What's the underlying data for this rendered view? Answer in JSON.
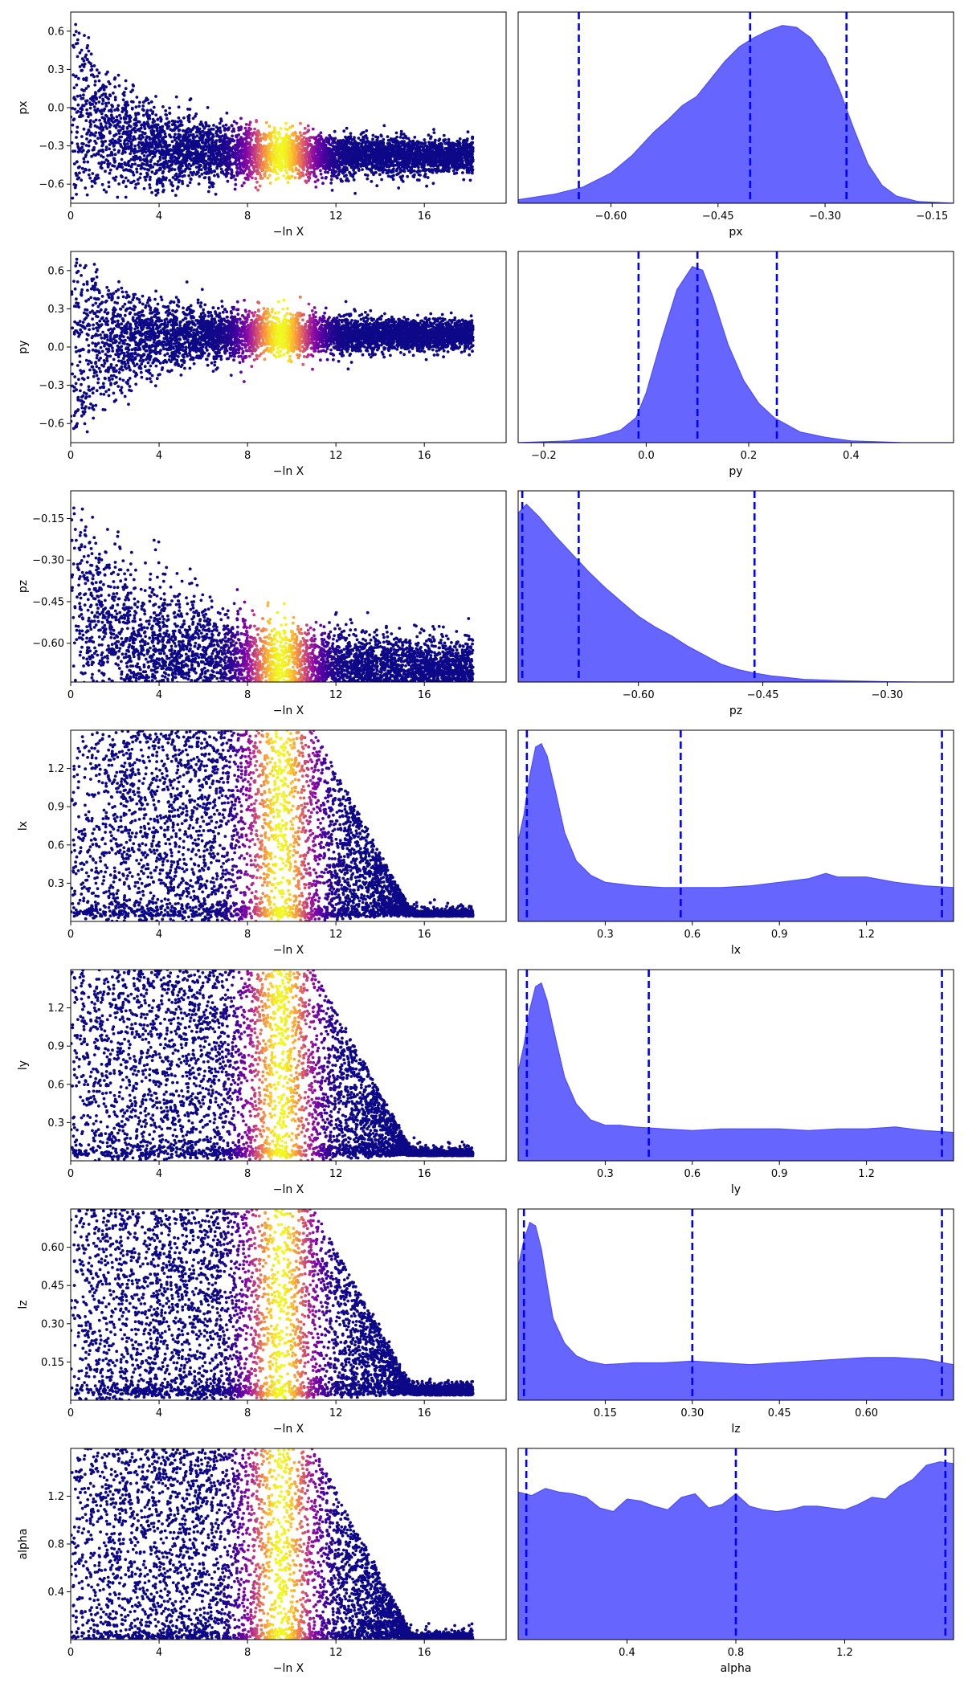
{
  "chart_data": [
    {
      "type": "scatter",
      "param": "px",
      "xlabel": "−ln X",
      "ylabel": "px",
      "xlim": [
        0,
        19.7
      ],
      "ylim": [
        -0.75,
        0.75
      ],
      "xticks": [
        0,
        4,
        8,
        12,
        16
      ],
      "yticks": [
        0.6,
        0.3,
        0.0,
        -0.3,
        -0.6
      ],
      "ytick_labels": [
        "0.6",
        "0.3",
        "0.0",
        "−0.3",
        "−0.6"
      ],
      "colormap": "plasma",
      "color_peak_lnx": 9.5,
      "posterior_center": -0.38,
      "final_spread": 0.06
    },
    {
      "type": "area",
      "param": "px",
      "xlabel": "px",
      "xlim": [
        -0.73,
        -0.12
      ],
      "xticks": [
        -0.6,
        -0.45,
        -0.3,
        -0.15
      ],
      "xtick_labels": [
        "−0.60",
        "−0.45",
        "−0.30",
        "−0.15"
      ],
      "quantiles": [
        -0.645,
        -0.405,
        -0.27
      ],
      "x": [
        -0.73,
        -0.68,
        -0.64,
        -0.6,
        -0.57,
        -0.54,
        -0.52,
        -0.5,
        -0.48,
        -0.46,
        -0.44,
        -0.42,
        -0.4,
        -0.38,
        -0.36,
        -0.34,
        -0.32,
        -0.3,
        -0.28,
        -0.26,
        -0.24,
        -0.22,
        -0.2,
        -0.17,
        -0.12
      ],
      "density": [
        0.02,
        0.05,
        0.09,
        0.17,
        0.27,
        0.4,
        0.47,
        0.55,
        0.6,
        0.7,
        0.8,
        0.88,
        0.93,
        0.97,
        1.0,
        0.99,
        0.93,
        0.82,
        0.64,
        0.42,
        0.22,
        0.1,
        0.04,
        0.01,
        0.0
      ]
    },
    {
      "type": "scatter",
      "param": "py",
      "xlabel": "−ln X",
      "ylabel": "py",
      "xlim": [
        0,
        19.7
      ],
      "ylim": [
        -0.75,
        0.75
      ],
      "xticks": [
        0,
        4,
        8,
        12,
        16
      ],
      "yticks": [
        0.6,
        0.3,
        0.0,
        -0.3,
        -0.6
      ],
      "ytick_labels": [
        "0.6",
        "0.3",
        "0.0",
        "−0.3",
        "−0.6"
      ],
      "colormap": "plasma",
      "color_peak_lnx": 9.5,
      "posterior_center": 0.1,
      "final_spread": 0.05
    },
    {
      "type": "area",
      "param": "py",
      "xlabel": "py",
      "xlim": [
        -0.25,
        0.6
      ],
      "xticks": [
        -0.2,
        0.0,
        0.2,
        0.4
      ],
      "xtick_labels": [
        "−0.2",
        "0.0",
        "0.2",
        "0.4"
      ],
      "quantiles": [
        -0.015,
        0.1,
        0.255
      ],
      "x": [
        -0.25,
        -0.15,
        -0.1,
        -0.05,
        -0.02,
        0.0,
        0.03,
        0.06,
        0.09,
        0.11,
        0.13,
        0.16,
        0.19,
        0.22,
        0.25,
        0.3,
        0.35,
        0.4,
        0.5,
        0.6
      ],
      "density": [
        0.0,
        0.01,
        0.03,
        0.07,
        0.14,
        0.28,
        0.58,
        0.86,
        0.99,
        0.97,
        0.82,
        0.55,
        0.35,
        0.22,
        0.14,
        0.06,
        0.03,
        0.01,
        0.0,
        0.0
      ]
    },
    {
      "type": "scatter",
      "param": "pz",
      "xlabel": "−ln X",
      "ylabel": "pz",
      "xlim": [
        0,
        19.7
      ],
      "ylim": [
        -0.74,
        -0.05
      ],
      "xticks": [
        0,
        4,
        8,
        12,
        16
      ],
      "yticks": [
        -0.15,
        -0.3,
        -0.45,
        -0.6
      ],
      "ytick_labels": [
        "−0.15",
        "−0.30",
        "−0.45",
        "−0.60"
      ],
      "colormap": "plasma",
      "color_peak_lnx": 9.5,
      "posterior_center": -0.7,
      "final_spread": 0.05
    },
    {
      "type": "area",
      "param": "pz",
      "xlabel": "pz",
      "xlim": [
        -0.745,
        -0.22
      ],
      "xticks": [
        -0.6,
        -0.45,
        -0.3
      ],
      "xtick_labels": [
        "−0.60",
        "−0.45",
        "−0.30"
      ],
      "quantiles": [
        -0.74,
        -0.672,
        -0.46
      ],
      "x": [
        -0.745,
        -0.735,
        -0.72,
        -0.7,
        -0.68,
        -0.66,
        -0.64,
        -0.62,
        -0.6,
        -0.58,
        -0.56,
        -0.54,
        -0.52,
        -0.5,
        -0.48,
        -0.46,
        -0.44,
        -0.42,
        -0.4,
        -0.36,
        -0.3,
        -0.26,
        -0.22
      ],
      "density": [
        0.95,
        1.0,
        0.93,
        0.82,
        0.72,
        0.62,
        0.53,
        0.45,
        0.37,
        0.31,
        0.26,
        0.2,
        0.15,
        0.1,
        0.07,
        0.05,
        0.035,
        0.025,
        0.015,
        0.008,
        0.002,
        0.0,
        0.0
      ]
    },
    {
      "type": "scatter",
      "param": "lx",
      "xlabel": "−ln X",
      "ylabel": "lx",
      "xlim": [
        0,
        19.7
      ],
      "ylim": [
        0.0,
        1.5
      ],
      "xticks": [
        0,
        4,
        8,
        12,
        16
      ],
      "yticks": [
        1.2,
        0.9,
        0.6,
        0.3
      ],
      "ytick_labels": [
        "1.2",
        "0.9",
        "0.6",
        "0.3"
      ],
      "colormap": "plasma",
      "color_peak_lnx": 9.5,
      "posterior_floor": 0.04
    },
    {
      "type": "area",
      "param": "lx",
      "xlabel": "lx",
      "xlim": [
        0.0,
        1.5
      ],
      "xticks": [
        0.3,
        0.6,
        0.9,
        1.2
      ],
      "xtick_labels": [
        "0.3",
        "0.6",
        "0.9",
        "1.2"
      ],
      "quantiles": [
        0.03,
        0.56,
        1.46
      ],
      "x": [
        0.0,
        0.02,
        0.04,
        0.06,
        0.08,
        0.1,
        0.13,
        0.16,
        0.2,
        0.25,
        0.3,
        0.35,
        0.4,
        0.5,
        0.6,
        0.7,
        0.8,
        0.9,
        1.0,
        1.06,
        1.1,
        1.2,
        1.3,
        1.4,
        1.5
      ],
      "density": [
        0.45,
        0.6,
        0.82,
        0.98,
        1.0,
        0.93,
        0.72,
        0.5,
        0.34,
        0.26,
        0.22,
        0.21,
        0.2,
        0.19,
        0.19,
        0.19,
        0.2,
        0.22,
        0.24,
        0.27,
        0.25,
        0.25,
        0.22,
        0.2,
        0.19
      ]
    },
    {
      "type": "scatter",
      "param": "ly",
      "xlabel": "−ln X",
      "ylabel": "ly",
      "xlim": [
        0,
        19.7
      ],
      "ylim": [
        0.0,
        1.5
      ],
      "xticks": [
        0,
        4,
        8,
        12,
        16
      ],
      "yticks": [
        1.2,
        0.9,
        0.6,
        0.3
      ],
      "ytick_labels": [
        "1.2",
        "0.9",
        "0.6",
        "0.3"
      ],
      "colormap": "plasma",
      "color_peak_lnx": 9.5,
      "posterior_floor": 0.04
    },
    {
      "type": "area",
      "param": "ly",
      "xlabel": "ly",
      "xlim": [
        0.0,
        1.5
      ],
      "xticks": [
        0.3,
        0.6,
        0.9,
        1.2
      ],
      "xtick_labels": [
        "0.3",
        "0.6",
        "0.9",
        "1.2"
      ],
      "quantiles": [
        0.03,
        0.45,
        1.46
      ],
      "x": [
        0.0,
        0.02,
        0.04,
        0.06,
        0.08,
        0.1,
        0.13,
        0.16,
        0.2,
        0.25,
        0.3,
        0.35,
        0.4,
        0.5,
        0.6,
        0.7,
        0.8,
        0.9,
        1.0,
        1.1,
        1.2,
        1.3,
        1.4,
        1.5
      ],
      "density": [
        0.5,
        0.65,
        0.85,
        0.98,
        1.0,
        0.9,
        0.68,
        0.47,
        0.32,
        0.23,
        0.2,
        0.2,
        0.19,
        0.18,
        0.17,
        0.18,
        0.18,
        0.18,
        0.17,
        0.18,
        0.18,
        0.19,
        0.17,
        0.16
      ]
    },
    {
      "type": "scatter",
      "param": "lz",
      "xlabel": "−ln X",
      "ylabel": "lz",
      "xlim": [
        0,
        19.7
      ],
      "ylim": [
        0.0,
        0.75
      ],
      "xticks": [
        0,
        4,
        8,
        12,
        16
      ],
      "yticks": [
        0.6,
        0.45,
        0.3,
        0.15
      ],
      "ytick_labels": [
        "0.60",
        "0.45",
        "0.30",
        "0.15"
      ],
      "colormap": "plasma",
      "color_peak_lnx": 9.5,
      "posterior_floor": 0.02
    },
    {
      "type": "area",
      "param": "lz",
      "xlabel": "lz",
      "xlim": [
        0.0,
        0.75
      ],
      "xticks": [
        0.15,
        0.3,
        0.45,
        0.6
      ],
      "xtick_labels": [
        "0.15",
        "0.30",
        "0.45",
        "0.60"
      ],
      "quantiles": [
        0.01,
        0.3,
        0.73
      ],
      "x": [
        0.0,
        0.01,
        0.02,
        0.03,
        0.04,
        0.05,
        0.06,
        0.08,
        0.1,
        0.12,
        0.15,
        0.2,
        0.25,
        0.3,
        0.35,
        0.4,
        0.45,
        0.5,
        0.55,
        0.6,
        0.65,
        0.7,
        0.75
      ],
      "density": [
        0.75,
        0.9,
        1.0,
        0.98,
        0.85,
        0.65,
        0.46,
        0.32,
        0.25,
        0.22,
        0.2,
        0.21,
        0.21,
        0.22,
        0.21,
        0.2,
        0.21,
        0.22,
        0.23,
        0.24,
        0.24,
        0.23,
        0.2
      ]
    },
    {
      "type": "scatter",
      "param": "alpha",
      "xlabel": "−ln X",
      "ylabel": "alpha",
      "xlim": [
        0,
        19.7
      ],
      "ylim": [
        0.0,
        1.6
      ],
      "xticks": [
        0,
        4,
        8,
        12,
        16
      ],
      "yticks": [
        1.2,
        0.8,
        0.4
      ],
      "ytick_labels": [
        "1.2",
        "0.8",
        "0.4"
      ],
      "colormap": "plasma",
      "color_peak_lnx": 9.5,
      "posterior_floor": 0.0
    },
    {
      "type": "area",
      "param": "alpha",
      "xlabel": "alpha",
      "xlim": [
        0.0,
        1.6
      ],
      "xticks": [
        0.4,
        0.8,
        1.2
      ],
      "xtick_labels": [
        "0.4",
        "0.8",
        "1.2"
      ],
      "quantiles": [
        0.03,
        0.8,
        1.57
      ],
      "x": [
        0.0,
        0.05,
        0.1,
        0.15,
        0.2,
        0.25,
        0.3,
        0.35,
        0.4,
        0.45,
        0.5,
        0.55,
        0.6,
        0.65,
        0.7,
        0.75,
        0.8,
        0.85,
        0.9,
        0.95,
        1.0,
        1.05,
        1.1,
        1.15,
        1.2,
        1.25,
        1.3,
        1.35,
        1.4,
        1.45,
        1.5,
        1.55,
        1.6
      ],
      "density": [
        0.83,
        0.81,
        0.85,
        0.83,
        0.82,
        0.8,
        0.74,
        0.72,
        0.79,
        0.78,
        0.75,
        0.73,
        0.8,
        0.82,
        0.74,
        0.76,
        0.82,
        0.75,
        0.73,
        0.72,
        0.73,
        0.75,
        0.75,
        0.74,
        0.73,
        0.76,
        0.8,
        0.79,
        0.86,
        0.9,
        0.98,
        1.0,
        0.99
      ]
    }
  ]
}
